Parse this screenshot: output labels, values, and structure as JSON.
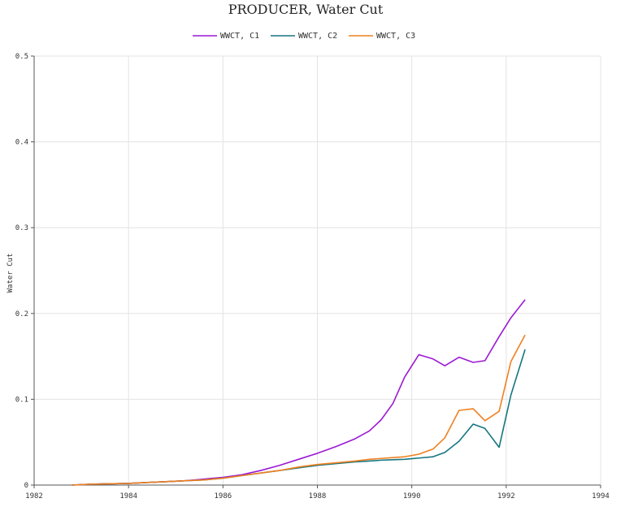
{
  "chart_data": {
    "type": "line",
    "title": "PRODUCER, Water Cut",
    "xlabel": "",
    "ylabel": "Water Cut",
    "xlim": [
      1982,
      1994
    ],
    "ylim": [
      0,
      0.5
    ],
    "x_ticks": [
      1982,
      1984,
      1986,
      1988,
      1990,
      1992,
      1994
    ],
    "x_tick_labels": [
      "1982",
      "1984",
      "1986",
      "1988",
      "1990",
      "1992",
      "1994"
    ],
    "y_ticks": [
      0,
      0.1,
      0.2,
      0.3,
      0.4,
      0.5
    ],
    "y_tick_labels": [
      "0",
      "0.1",
      "0.2",
      "0.3",
      "0.4",
      "0.5"
    ],
    "grid": true,
    "legend_position": "top-center",
    "series": [
      {
        "name": "WWCT, C1",
        "color": "#9b19d4",
        "x": [
          1982.8,
          1983.2,
          1983.6,
          1984.0,
          1984.4,
          1984.8,
          1985.2,
          1985.6,
          1986.0,
          1986.4,
          1986.8,
          1987.2,
          1987.6,
          1988.0,
          1988.4,
          1988.8,
          1989.1,
          1989.35,
          1989.6,
          1989.85,
          1990.15,
          1990.45,
          1990.7,
          1991.0,
          1991.3,
          1991.55,
          1991.85,
          1992.1,
          1992.4
        ],
        "y": [
          0.0,
          0.001,
          0.0015,
          0.002,
          0.003,
          0.004,
          0.005,
          0.007,
          0.009,
          0.012,
          0.017,
          0.023,
          0.03,
          0.037,
          0.045,
          0.054,
          0.063,
          0.076,
          0.095,
          0.126,
          0.152,
          0.147,
          0.139,
          0.149,
          0.143,
          0.145,
          0.173,
          0.195,
          0.216
        ]
      },
      {
        "name": "WWCT, C2",
        "color": "#167580",
        "x": [
          1982.8,
          1983.2,
          1983.6,
          1984.0,
          1984.4,
          1984.8,
          1985.2,
          1985.6,
          1986.0,
          1986.4,
          1986.8,
          1987.2,
          1987.6,
          1988.0,
          1988.4,
          1988.8,
          1989.1,
          1989.35,
          1989.6,
          1989.85,
          1990.15,
          1990.45,
          1990.7,
          1991.0,
          1991.3,
          1991.55,
          1991.85,
          1992.1,
          1992.4
        ],
        "y": [
          0.0,
          0.001,
          0.0015,
          0.002,
          0.003,
          0.004,
          0.005,
          0.006,
          0.008,
          0.011,
          0.014,
          0.017,
          0.02,
          0.023,
          0.025,
          0.027,
          0.028,
          0.029,
          0.0295,
          0.03,
          0.0315,
          0.033,
          0.038,
          0.051,
          0.071,
          0.066,
          0.044,
          0.105,
          0.158
        ]
      },
      {
        "name": "WWCT, C3",
        "color": "#f0801f",
        "x": [
          1982.8,
          1983.2,
          1983.6,
          1984.0,
          1984.4,
          1984.8,
          1985.2,
          1985.6,
          1986.0,
          1986.4,
          1986.8,
          1987.2,
          1987.6,
          1988.0,
          1988.4,
          1988.8,
          1989.1,
          1989.35,
          1989.6,
          1989.85,
          1990.15,
          1990.45,
          1990.7,
          1991.0,
          1991.3,
          1991.55,
          1991.85,
          1992.1,
          1992.4
        ],
        "y": [
          0.0,
          0.001,
          0.0015,
          0.002,
          0.003,
          0.004,
          0.005,
          0.006,
          0.008,
          0.011,
          0.014,
          0.017,
          0.021,
          0.024,
          0.026,
          0.028,
          0.03,
          0.031,
          0.032,
          0.033,
          0.036,
          0.042,
          0.055,
          0.087,
          0.089,
          0.075,
          0.086,
          0.144,
          0.175
        ]
      }
    ]
  }
}
